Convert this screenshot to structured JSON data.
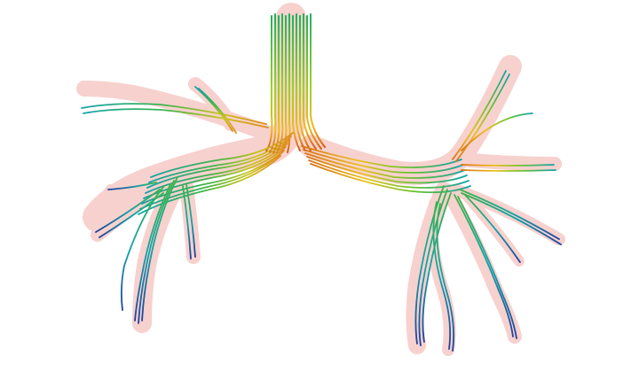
{
  "image": {
    "background": "#ffffff",
    "airway_wall_color": "#f6c9c6",
    "streamline_color_scale": [
      "#1f3f9f",
      "#13a3a8",
      "#1fb25a",
      "#9fd121",
      "#f0b81c",
      "#d85a14"
    ],
    "streamline_count": 12
  }
}
